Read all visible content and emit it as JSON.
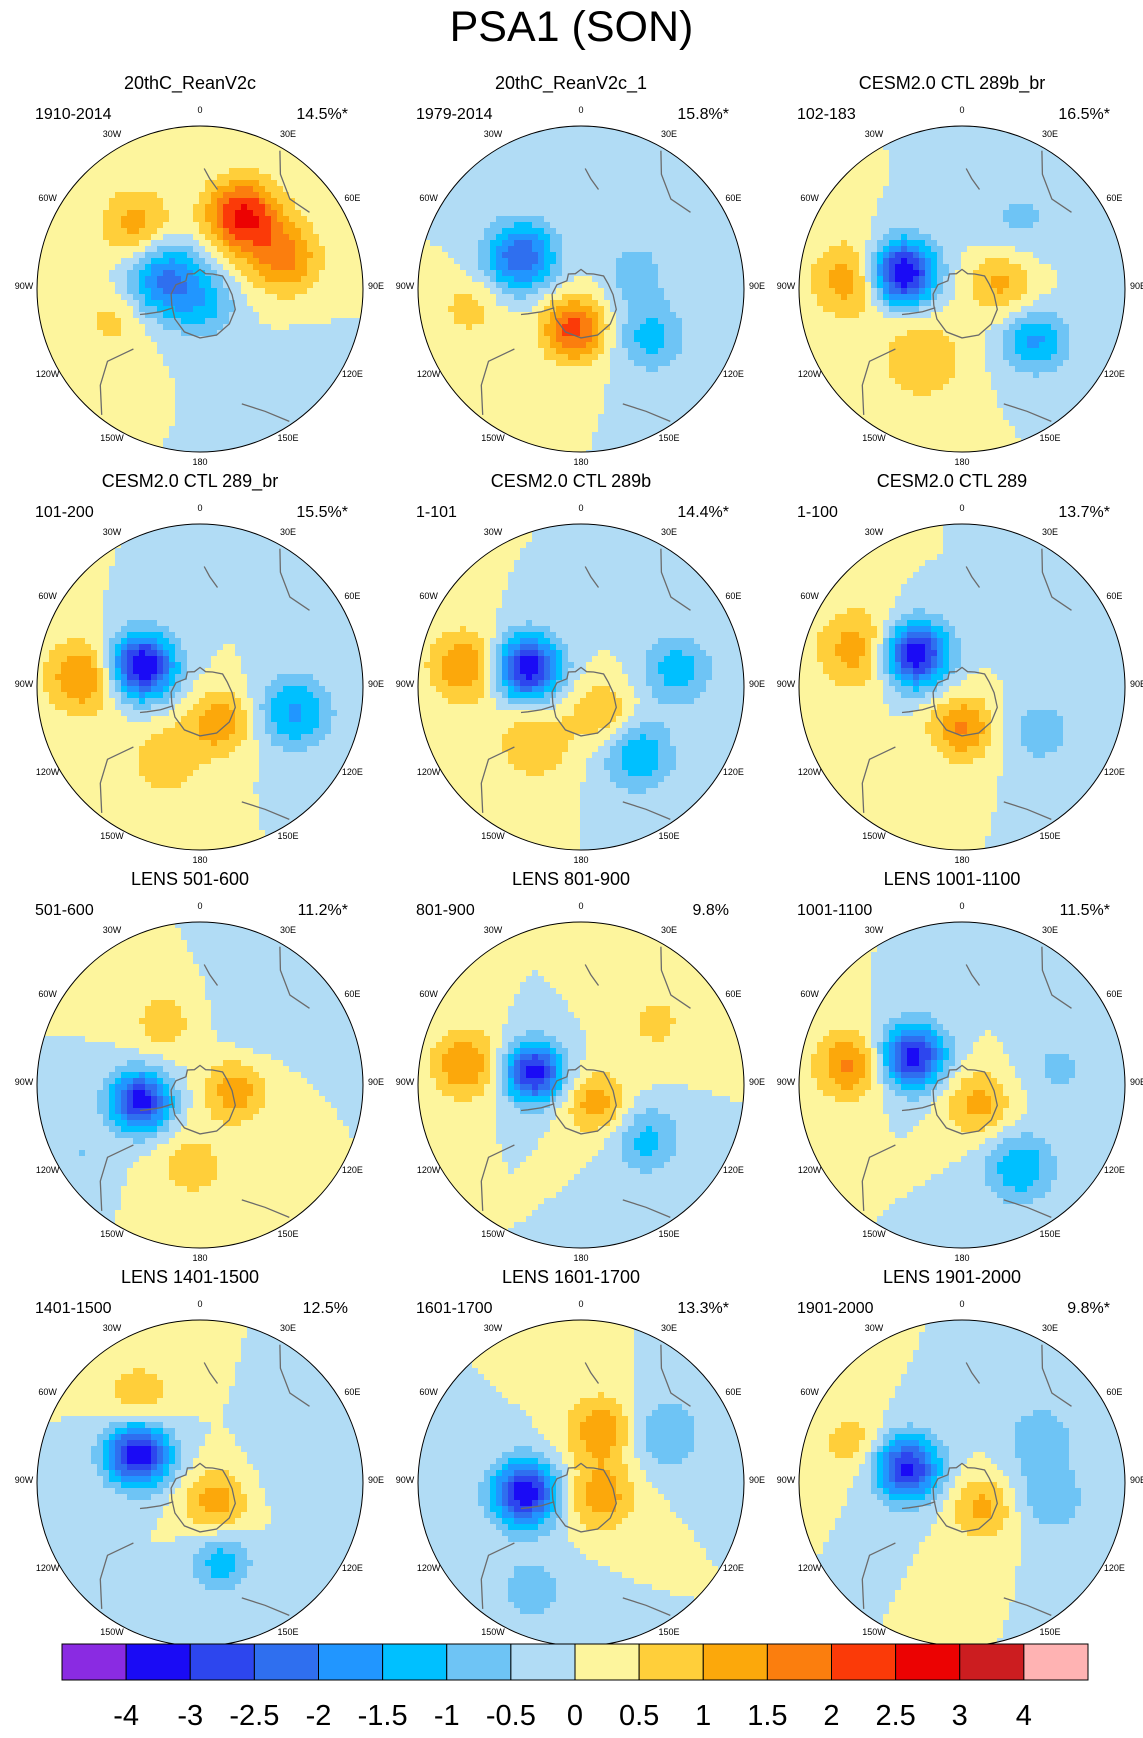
{
  "title": "PSA1 (SON)",
  "longitude_labels": [
    "0",
    "30E",
    "60E",
    "90E",
    "120E",
    "150E",
    "180",
    "150W",
    "120W",
    "90W",
    "60W",
    "30W"
  ],
  "panels": [
    {
      "title": "20thC_ReanV2c",
      "period": "1910-2014",
      "variance": "14.5%*",
      "features": [
        {
          "lon": -105,
          "r": 0.22,
          "v": -2.2,
          "s": 0.17
        },
        {
          "lon": 20,
          "r": 0.12,
          "v": -0.9,
          "s": 0.14
        },
        {
          "lon": 150,
          "r": 0.52,
          "v": 2.6,
          "s": 0.16
        },
        {
          "lon": 110,
          "r": 0.55,
          "v": 1.6,
          "s": 0.16
        },
        {
          "lon": -135,
          "r": 0.55,
          "v": 1.3,
          "s": 0.16
        },
        {
          "lon": -70,
          "r": 0.55,
          "v": 0.7,
          "s": 0.16
        },
        {
          "lon": 45,
          "r": 0.85,
          "v": -0.4,
          "s": 0.18
        }
      ]
    },
    {
      "title": "20thC_ReanV2c_1",
      "period": "1979-2014",
      "variance": "15.8%*",
      "features": [
        {
          "lon": -118,
          "r": 0.42,
          "v": -2.5,
          "s": 0.15
        },
        {
          "lon": -10,
          "r": 0.25,
          "v": 2.2,
          "s": 0.14
        },
        {
          "lon": 55,
          "r": 0.52,
          "v": -1.2,
          "s": 0.15
        },
        {
          "lon": 105,
          "r": 0.35,
          "v": -0.7,
          "s": 0.15
        },
        {
          "lon": -80,
          "r": 0.7,
          "v": 0.7,
          "s": 0.14
        },
        {
          "lon": 150,
          "r": 0.7,
          "v": -0.4,
          "s": 0.2
        }
      ]
    },
    {
      "title": "CESM2.0 CTL 289b_br",
      "period": "102-183",
      "variance": "16.5%*",
      "features": [
        {
          "lon": -105,
          "r": 0.38,
          "v": -3.8,
          "s": 0.14
        },
        {
          "lon": -95,
          "r": 0.68,
          "v": 1.4,
          "s": 0.17
        },
        {
          "lon": 55,
          "r": 0.55,
          "v": -1.6,
          "s": 0.14
        },
        {
          "lon": 100,
          "r": 0.25,
          "v": 1.2,
          "s": 0.15
        },
        {
          "lon": 140,
          "r": 0.55,
          "v": -0.6,
          "s": 0.2
        },
        {
          "lon": -30,
          "r": 0.5,
          "v": 1.0,
          "s": 0.18
        }
      ]
    },
    {
      "title": "CESM2.0 CTL 289_br",
      "period": "101-200",
      "variance": "15.5%*",
      "features": [
        {
          "lon": -110,
          "r": 0.38,
          "v": -3.7,
          "s": 0.14
        },
        {
          "lon": -95,
          "r": 0.72,
          "v": 1.6,
          "s": 0.16
        },
        {
          "lon": 75,
          "r": 0.6,
          "v": -1.6,
          "s": 0.16
        },
        {
          "lon": 30,
          "r": 0.25,
          "v": 1.4,
          "s": 0.14
        },
        {
          "lon": -25,
          "r": 0.5,
          "v": 0.9,
          "s": 0.16
        }
      ]
    },
    {
      "title": "CESM2.0 CTL 289b",
      "period": "1-101",
      "variance": "14.4%*",
      "features": [
        {
          "lon": -110,
          "r": 0.35,
          "v": -3.5,
          "s": 0.14
        },
        {
          "lon": -100,
          "r": 0.72,
          "v": 1.5,
          "s": 0.16
        },
        {
          "lon": 40,
          "r": 0.55,
          "v": -1.5,
          "s": 0.15
        },
        {
          "lon": 100,
          "r": 0.6,
          "v": -1.3,
          "s": 0.15
        },
        {
          "lon": 40,
          "r": 0.2,
          "v": 1.0,
          "s": 0.14
        },
        {
          "lon": -40,
          "r": 0.45,
          "v": 1.0,
          "s": 0.16
        }
      ]
    },
    {
      "title": "CESM2.0 CTL 289",
      "period": "1-100",
      "variance": "13.7%*",
      "features": [
        {
          "lon": -125,
          "r": 0.35,
          "v": -3.6,
          "s": 0.14
        },
        {
          "lon": -110,
          "r": 0.68,
          "v": 1.3,
          "s": 0.18
        },
        {
          "lon": 0,
          "r": 0.25,
          "v": 1.6,
          "s": 0.14
        },
        {
          "lon": 60,
          "r": 0.55,
          "v": -0.8,
          "s": 0.15
        },
        {
          "lon": 120,
          "r": 0.75,
          "v": -0.5,
          "s": 0.2
        }
      ]
    },
    {
      "title": "LENS 501-600",
      "period": "501-600",
      "variance": "11.2%*",
      "features": [
        {
          "lon": -75,
          "r": 0.38,
          "v": -3.3,
          "s": 0.13
        },
        {
          "lon": 80,
          "r": 0.22,
          "v": 1.3,
          "s": 0.14
        },
        {
          "lon": -150,
          "r": 0.45,
          "v": 0.8,
          "s": 0.14
        },
        {
          "lon": -5,
          "r": 0.5,
          "v": 0.8,
          "s": 0.15
        },
        {
          "lon": -60,
          "r": 0.85,
          "v": -0.5,
          "s": 0.12
        },
        {
          "lon": 140,
          "r": 0.6,
          "v": -0.5,
          "s": 0.18
        }
      ]
    },
    {
      "title": "LENS 801-900",
      "period": "801-900",
      "variance": "9.8%",
      "features": [
        {
          "lon": -105,
          "r": 0.3,
          "v": -3.3,
          "s": 0.13
        },
        {
          "lon": -100,
          "r": 0.72,
          "v": 1.5,
          "s": 0.15
        },
        {
          "lon": 50,
          "r": 0.52,
          "v": -1.2,
          "s": 0.15
        },
        {
          "lon": 40,
          "r": 0.15,
          "v": 1.3,
          "s": 0.14
        },
        {
          "lon": 130,
          "r": 0.6,
          "v": 0.6,
          "s": 0.18
        }
      ]
    },
    {
      "title": "LENS 1001-1100",
      "period": "1001-1100",
      "variance": "11.5%*",
      "features": [
        {
          "lon": -120,
          "r": 0.35,
          "v": -3.3,
          "s": 0.14
        },
        {
          "lon": -100,
          "r": 0.7,
          "v": 1.6,
          "s": 0.15
        },
        {
          "lon": 35,
          "r": 0.62,
          "v": -1.5,
          "s": 0.15
        },
        {
          "lon": 40,
          "r": 0.15,
          "v": 1.2,
          "s": 0.15
        },
        {
          "lon": 100,
          "r": 0.6,
          "v": -0.6,
          "s": 0.16
        }
      ]
    },
    {
      "title": "LENS 1401-1500",
      "period": "1401-1500",
      "variance": "12.5%",
      "features": [
        {
          "lon": -115,
          "r": 0.42,
          "v": -3.5,
          "s": 0.14
        },
        {
          "lon": 15,
          "r": 0.5,
          "v": -1.3,
          "s": 0.13
        },
        {
          "lon": 40,
          "r": 0.15,
          "v": 1.3,
          "s": 0.14
        },
        {
          "lon": -145,
          "r": 0.65,
          "v": 0.9,
          "s": 0.15
        },
        {
          "lon": 100,
          "r": 0.65,
          "v": -0.5,
          "s": 0.18
        }
      ]
    },
    {
      "title": "LENS 1601-1700",
      "period": "1601-1700",
      "variance": "13.3%*",
      "features": [
        {
          "lon": -80,
          "r": 0.35,
          "v": -3.5,
          "s": 0.14
        },
        {
          "lon": 55,
          "r": 0.15,
          "v": 1.3,
          "s": 0.15
        },
        {
          "lon": 160,
          "r": 0.35,
          "v": 1.4,
          "s": 0.15
        },
        {
          "lon": -25,
          "r": 0.72,
          "v": -0.7,
          "s": 0.18
        },
        {
          "lon": 120,
          "r": 0.6,
          "v": -1.0,
          "s": 0.16
        }
      ]
    },
    {
      "title": "LENS 1901-2000",
      "period": "1901-2000",
      "variance": "9.8%*",
      "features": [
        {
          "lon": -105,
          "r": 0.35,
          "v": -3.2,
          "s": 0.14
        },
        {
          "lon": 40,
          "r": 0.2,
          "v": 1.2,
          "s": 0.14
        },
        {
          "lon": -110,
          "r": 0.72,
          "v": 0.8,
          "s": 0.14
        },
        {
          "lon": 80,
          "r": 0.55,
          "v": -0.9,
          "s": 0.16
        },
        {
          "lon": 120,
          "r": 0.55,
          "v": -0.9,
          "s": 0.15
        }
      ]
    }
  ],
  "colorbar": {
    "levels": [
      -4,
      -3,
      -2.5,
      -2,
      -1.5,
      -1,
      -0.5,
      0,
      0.5,
      1,
      1.5,
      2,
      2.5,
      3,
      4
    ],
    "labels": [
      "-4",
      "-3",
      "-2.5",
      "-2",
      "-1.5",
      "-1",
      "-0.5",
      "0",
      "0.5",
      "1",
      "1.5",
      "2",
      "2.5",
      "3",
      "4"
    ],
    "colors": [
      "#8a2be2",
      "#1a0bf5",
      "#2d46ee",
      "#2f6fef",
      "#2196ff",
      "#00c0ff",
      "#6ec4f5",
      "#b1dcf5",
      "#fdf59d",
      "#ffcf3a",
      "#fca80b",
      "#fb7e0e",
      "#fb3a08",
      "#ec0202",
      "#cc1d20",
      "#ffb3b3"
    ]
  }
}
